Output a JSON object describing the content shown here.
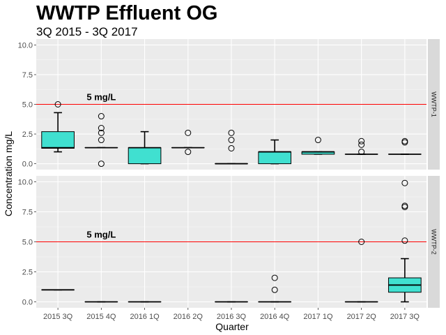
{
  "chart_data": {
    "type": "boxplot",
    "title": "WWTP Effluent OG",
    "subtitle": "3Q 2015 - 3Q 2017",
    "xlabel": "Quarter",
    "ylabel": "Concentration mg/L",
    "ylim": [
      0,
      10
    ],
    "yticks": [
      "0.0",
      "2.5",
      "5.0",
      "7.5",
      "10.0"
    ],
    "categories": [
      "2015 3Q",
      "2015 4Q",
      "2016 1Q",
      "2016 2Q",
      "2016 3Q",
      "2016 4Q",
      "2017 1Q",
      "2017 2Q",
      "2017 3Q"
    ],
    "reference_line": {
      "value": 5,
      "label": "5 mg/L",
      "color": "#ff0000"
    },
    "box_fill": "#40e0d0",
    "panels": [
      {
        "name": "WWTP-1",
        "boxes": [
          {
            "category": "2015 3Q",
            "whisker_low": 1.0,
            "q1": 1.3,
            "median": 1.35,
            "q3": 2.7,
            "whisker_high": 4.3,
            "outliers": [
              5.0
            ]
          },
          {
            "category": "2015 4Q",
            "whisker_low": 1.35,
            "q1": 1.35,
            "median": 1.35,
            "q3": 1.35,
            "whisker_high": 1.35,
            "outliers": [
              0.0,
              2.0,
              2.6,
              3.0,
              4.0
            ]
          },
          {
            "category": "2016 1Q",
            "whisker_low": 0.0,
            "q1": 0.0,
            "median": 1.35,
            "q3": 1.35,
            "whisker_high": 2.7,
            "outliers": []
          },
          {
            "category": "2016 2Q",
            "whisker_low": 1.35,
            "q1": 1.35,
            "median": 1.35,
            "q3": 1.35,
            "whisker_high": 1.35,
            "outliers": [
              1.0,
              2.6
            ]
          },
          {
            "category": "2016 3Q",
            "whisker_low": 0.0,
            "q1": 0.0,
            "median": 0.0,
            "q3": 0.0,
            "whisker_high": 0.0,
            "outliers": [
              1.3,
              2.0,
              2.6
            ]
          },
          {
            "category": "2016 4Q",
            "whisker_low": 0.0,
            "q1": 0.0,
            "median": 1.0,
            "q3": 1.0,
            "whisker_high": 2.0,
            "outliers": []
          },
          {
            "category": "2017 1Q",
            "whisker_low": 0.8,
            "q1": 0.8,
            "median": 1.0,
            "q3": 1.0,
            "whisker_high": 1.0,
            "outliers": [
              2.0
            ]
          },
          {
            "category": "2017 2Q",
            "whisker_low": 0.8,
            "q1": 0.8,
            "median": 0.8,
            "q3": 0.8,
            "whisker_high": 0.8,
            "outliers": [
              1.0,
              1.6,
              1.9
            ]
          },
          {
            "category": "2017 3Q",
            "whisker_low": 0.8,
            "q1": 0.8,
            "median": 0.8,
            "q3": 0.8,
            "whisker_high": 0.8,
            "outliers": [
              1.8,
              1.9
            ]
          }
        ]
      },
      {
        "name": "WWTP-2",
        "boxes": [
          {
            "category": "2015 3Q",
            "whisker_low": 1.0,
            "q1": 1.0,
            "median": 1.0,
            "q3": 1.0,
            "whisker_high": 1.0,
            "outliers": []
          },
          {
            "category": "2015 4Q",
            "whisker_low": 0.0,
            "q1": 0.0,
            "median": 0.0,
            "q3": 0.0,
            "whisker_high": 0.0,
            "outliers": []
          },
          {
            "category": "2016 1Q",
            "whisker_low": 0.0,
            "q1": 0.0,
            "median": 0.0,
            "q3": 0.0,
            "whisker_high": 0.0,
            "outliers": []
          },
          {
            "category": "2016 3Q",
            "whisker_low": 0.0,
            "q1": 0.0,
            "median": 0.0,
            "q3": 0.0,
            "whisker_high": 0.0,
            "outliers": []
          },
          {
            "category": "2016 4Q",
            "whisker_low": 0.0,
            "q1": 0.0,
            "median": 0.0,
            "q3": 0.0,
            "whisker_high": 0.0,
            "outliers": [
              1.0,
              2.0
            ]
          },
          {
            "category": "2017 2Q",
            "whisker_low": 0.0,
            "q1": 0.0,
            "median": 0.0,
            "q3": 0.0,
            "whisker_high": 0.0,
            "outliers": [
              5.0
            ]
          },
          {
            "category": "2017 3Q",
            "whisker_low": 0.0,
            "q1": 0.8,
            "median": 1.4,
            "q3": 2.0,
            "whisker_high": 3.6,
            "outliers": [
              5.1,
              7.9,
              8.0,
              9.9
            ]
          }
        ]
      }
    ],
    "grid": true,
    "legend": "none"
  }
}
